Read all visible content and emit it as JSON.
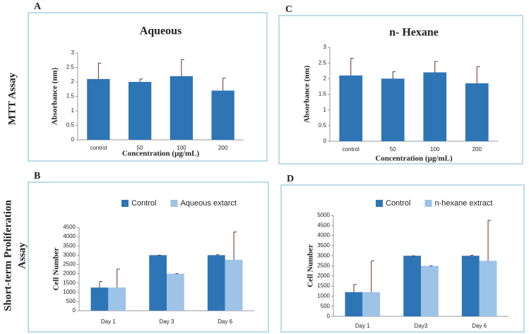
{
  "row_labels": [
    "MTT Assay",
    "Short-term  Proliferation",
    "Assay"
  ],
  "chart_data": [
    {
      "panel": "A",
      "type": "bar",
      "title": "Aqueous",
      "y_label": "Absorbance (nm)",
      "x_label": "Concentration (µg/mL)",
      "categories": [
        "control",
        "50",
        "100",
        "200"
      ],
      "values": [
        2.1,
        2.0,
        2.2,
        1.7
      ],
      "errors": [
        0.55,
        0.1,
        0.57,
        0.43
      ],
      "color": "#2e75b6",
      "ylim": [
        0,
        3
      ],
      "yticks": [
        0,
        0.5,
        1,
        1.5,
        2,
        2.5,
        3
      ]
    },
    {
      "panel": "B",
      "type": "bar",
      "y_label": "Cell Number",
      "categories": [
        "Day 1",
        "Day 3",
        "Day 6"
      ],
      "series": [
        {
          "name": "Control",
          "color": "#2e75b6",
          "values": [
            1250,
            3000,
            3000
          ],
          "errors": [
            330,
            0,
            20
          ]
        },
        {
          "name": "Aqueous extarct",
          "color": "#9dc3e6",
          "values": [
            1250,
            2000,
            2750
          ],
          "errors": [
            1000,
            0,
            1500
          ]
        }
      ],
      "ylim": [
        0,
        4500
      ],
      "yticks": [
        0,
        500,
        1000,
        1500,
        2000,
        2500,
        3000,
        3500,
        4000,
        4500
      ],
      "legend": "top"
    },
    {
      "panel": "C",
      "type": "bar",
      "title": "n- Hexane",
      "y_label": "Absorbance (nm)",
      "x_label": "Concentration (µg/mL)",
      "categories": [
        "control",
        "50",
        "100",
        "200"
      ],
      "values": [
        2.1,
        2.0,
        2.2,
        1.85
      ],
      "errors": [
        0.55,
        0.22,
        0.35,
        0.53
      ],
      "color": "#2e75b6",
      "ylim": [
        0,
        3
      ],
      "yticks": [
        0,
        0.5,
        1,
        1.5,
        2,
        2.5,
        3
      ]
    },
    {
      "panel": "D",
      "type": "bar",
      "y_label": "Cell Number",
      "categories": [
        "Day 1",
        "Day3",
        "Day 6"
      ],
      "series": [
        {
          "name": "Control",
          "color": "#2e75b6",
          "values": [
            1200,
            3000,
            3000
          ],
          "errors": [
            380,
            0,
            20
          ]
        },
        {
          "name": "n-hexane extract",
          "color": "#9dc3e6",
          "values": [
            1200,
            2500,
            2750
          ],
          "errors": [
            1550,
            0,
            2000
          ]
        }
      ],
      "ylim": [
        0,
        5000
      ],
      "yticks": [
        0,
        500,
        1000,
        1500,
        2000,
        2500,
        3000,
        3500,
        4000,
        4500,
        5000
      ],
      "legend": "top"
    }
  ]
}
